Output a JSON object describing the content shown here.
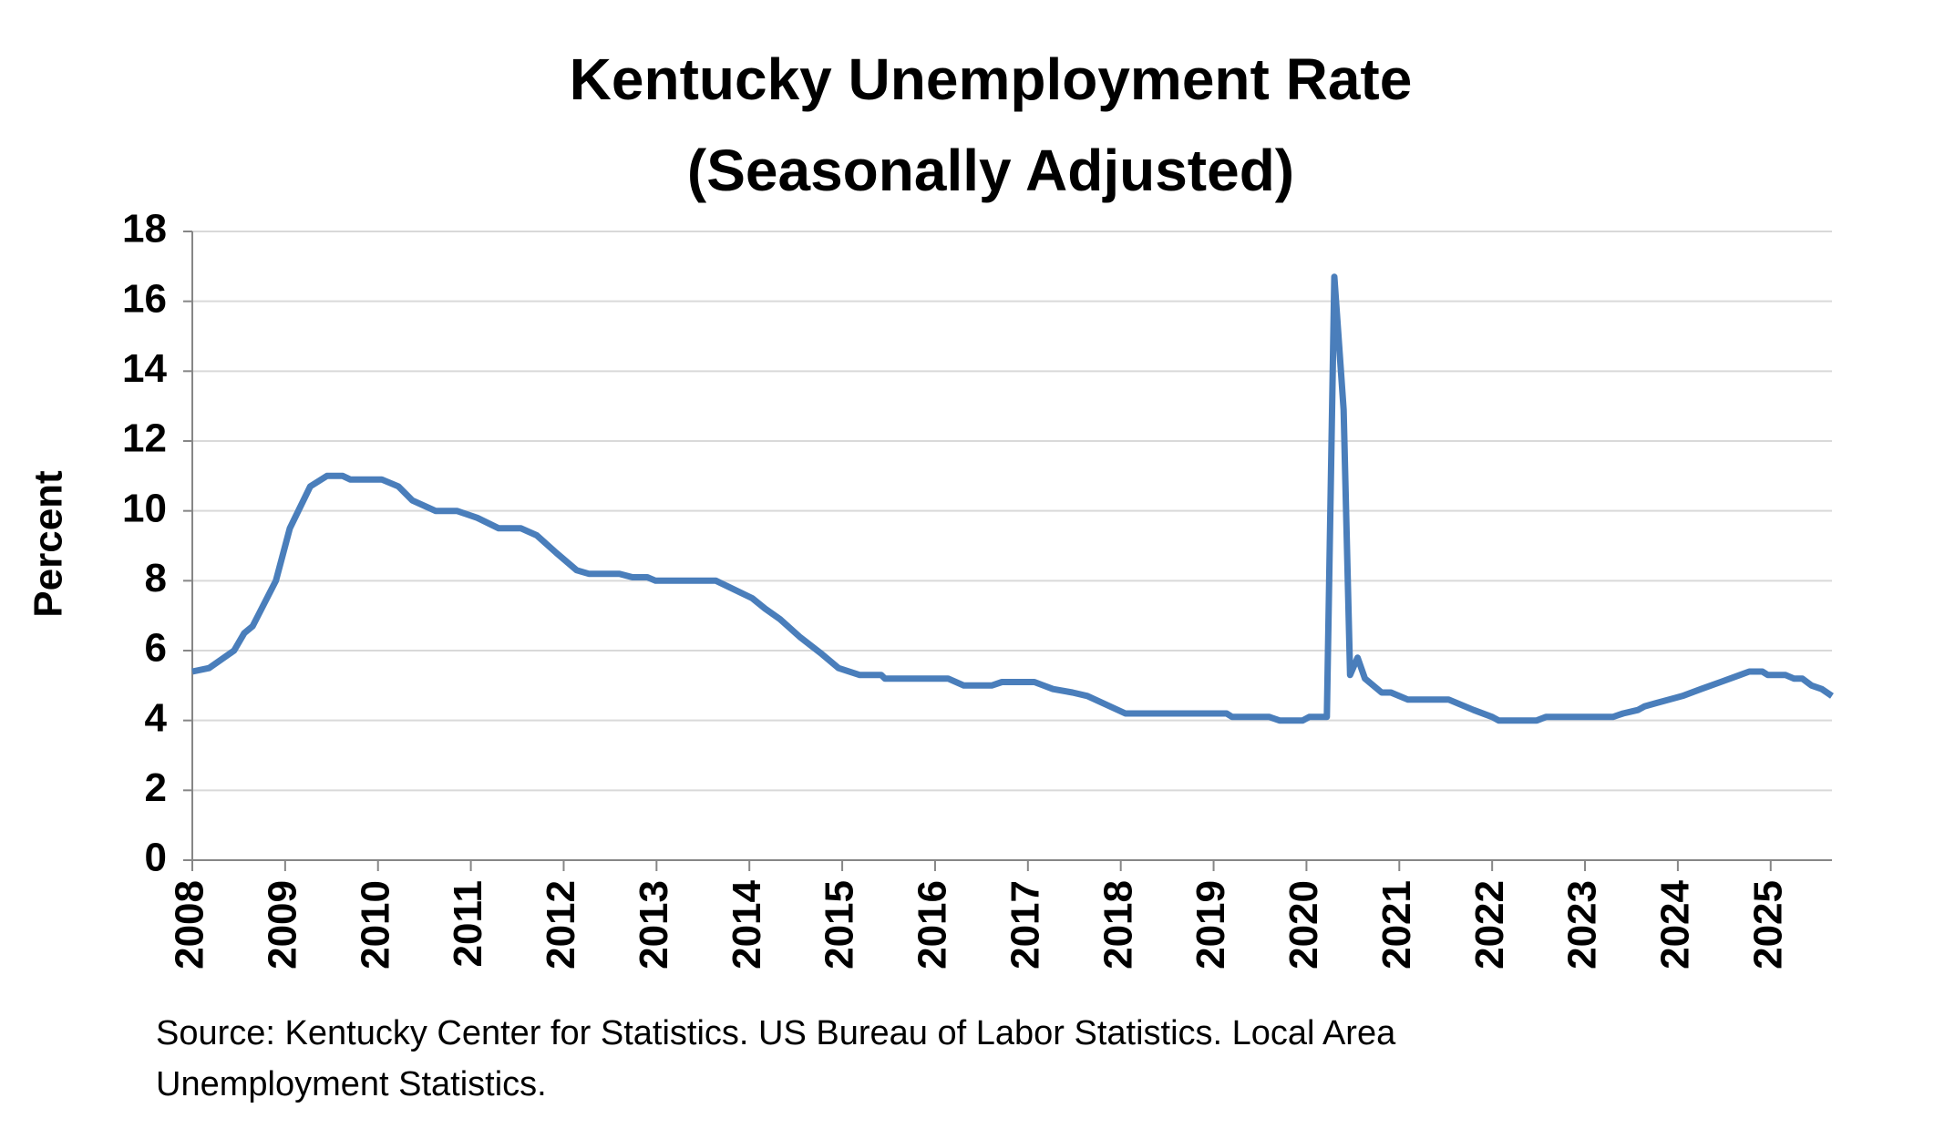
{
  "chart_data": {
    "type": "line",
    "title": [
      "Kentucky Unemployment Rate",
      "(Seasonally Adjusted)"
    ],
    "y_label": "Percent",
    "source": [
      "Source: Kentucky Center for Statistics. US Bureau of Labor Statistics. Local Area",
      "Unemployment Statistics."
    ],
    "x": [
      2008.0,
      2008.18,
      2008.45,
      2008.56,
      2008.65,
      2008.9,
      2009.05,
      2009.27,
      2009.45,
      2009.62,
      2009.7,
      2010.04,
      2010.22,
      2010.37,
      2010.62,
      2010.85,
      2011.07,
      2011.3,
      2011.54,
      2011.71,
      2011.92,
      2012.14,
      2012.27,
      2012.6,
      2012.74,
      2012.9,
      2012.99,
      2013.64,
      2014.03,
      2014.17,
      2014.33,
      2014.54,
      2014.78,
      2014.96,
      2015.19,
      2015.42,
      2015.46,
      2016.14,
      2016.31,
      2016.61,
      2016.72,
      2017.07,
      2017.27,
      2017.48,
      2017.64,
      2018.05,
      2019.14,
      2019.2,
      2019.6,
      2019.71,
      2019.96,
      2020.03,
      2020.22,
      2020.3,
      2020.4,
      2020.47,
      2020.55,
      2020.63,
      2020.81,
      2020.91,
      2021.09,
      2021.53,
      2021.8,
      2022.0,
      2022.07,
      2022.48,
      2022.58,
      2023.3,
      2023.41,
      2023.57,
      2023.64,
      2023.77,
      2024.05,
      2024.25,
      2024.46,
      2024.77,
      2024.91,
      2024.97,
      2025.16,
      2025.25,
      2025.34,
      2025.44,
      2025.55,
      2025.66
    ],
    "series": [
      {
        "name": "Kentucky",
        "color": "#4a7ebb",
        "values": [
          5.4,
          5.5,
          6.0,
          6.5,
          6.7,
          8.0,
          9.5,
          10.7,
          11.0,
          11.0,
          10.9,
          10.9,
          10.7,
          10.3,
          10.0,
          10.0,
          9.8,
          9.5,
          9.5,
          9.3,
          8.8,
          8.3,
          8.2,
          8.2,
          8.1,
          8.1,
          8.0,
          8.0,
          7.5,
          7.2,
          6.9,
          6.4,
          5.9,
          5.5,
          5.3,
          5.3,
          5.2,
          5.2,
          5.0,
          5.0,
          5.1,
          5.1,
          4.9,
          4.8,
          4.7,
          4.2,
          4.2,
          4.1,
          4.1,
          4.0,
          4.0,
          4.1,
          4.1,
          16.7,
          12.9,
          5.3,
          5.8,
          5.2,
          4.8,
          4.8,
          4.6,
          4.6,
          4.3,
          4.1,
          4.0,
          4.0,
          4.1,
          4.1,
          4.2,
          4.3,
          4.4,
          4.5,
          4.7,
          4.9,
          5.1,
          5.4,
          5.4,
          5.3,
          5.3,
          5.2,
          5.2,
          5.0,
          4.9,
          4.7
        ]
      }
    ],
    "xlim": [
      2008,
      2025.66
    ],
    "xticks": [
      2008,
      2009,
      2010,
      2011,
      2012,
      2013,
      2014,
      2015,
      2016,
      2017,
      2018,
      2019,
      2020,
      2021,
      2022,
      2023,
      2024,
      2025
    ],
    "ylim": [
      0,
      18
    ],
    "yticks": [
      0,
      2,
      4,
      6,
      8,
      10,
      12,
      14,
      16,
      18
    ],
    "grid": true
  }
}
